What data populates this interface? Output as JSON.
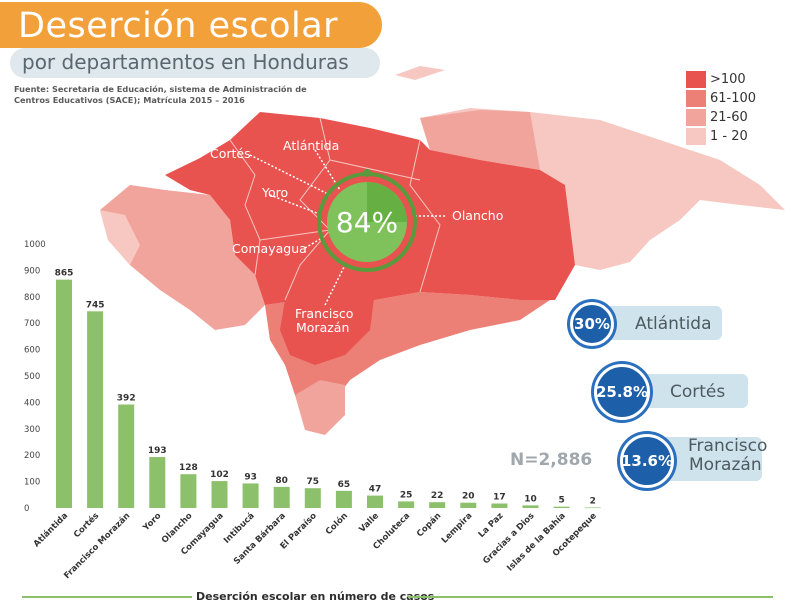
{
  "header": {
    "title": "Deserción escolar",
    "subtitle": "por departamentos en Honduras",
    "source_line1": "Fuente: Secretaria de Educación, sistema de Administración de",
    "source_line2": "Centros Educativos (SACE); Matrícula 2015 – 2016"
  },
  "legend": {
    "items": [
      {
        "label": ">100",
        "color": "#e8534f"
      },
      {
        "label": "61-100",
        "color": "#ec7f76"
      },
      {
        "label": "21-60",
        "color": "#f0a49b"
      },
      {
        "label": "1 - 20",
        "color": "#f6c8c1"
      }
    ]
  },
  "map": {
    "center_percent": "84%",
    "labels": [
      "Cortés",
      "Atlántida",
      "Yoro",
      "Olancho",
      "Comayagua",
      "Francisco",
      "Morazán"
    ]
  },
  "bubbles": [
    {
      "value": "30%",
      "label": "Atlántida",
      "fraction": 0.3
    },
    {
      "value": "25.8%",
      "label": "Cortés",
      "fraction": 0.258
    },
    {
      "value": "13.6%",
      "label_line1": "Francisco",
      "label_line2": "Morazán",
      "fraction": 0.136
    }
  ],
  "n_label": "N=2,886",
  "footer": "Deserción escolar en número de casos",
  "chart_data": {
    "type": "bar",
    "xlabel": "Deserción escolar en número de casos",
    "ylabel": "",
    "ylim": [
      0,
      1000
    ],
    "yticks": [
      0,
      100,
      200,
      300,
      400,
      500,
      600,
      700,
      800,
      900,
      1000
    ],
    "grid": false,
    "categories": [
      "Atlántida",
      "Cortés",
      "Francisco Morazán",
      "Yoro",
      "Olancho",
      "Comayagua",
      "Intibucá",
      "Santa Bárbara",
      "El Paraíso",
      "Colón",
      "Valle",
      "Choluteca",
      "Copán",
      "Lempira",
      "La Paz",
      "Gracias a Dios",
      "Islas de la Bahía",
      "Ocotepeque"
    ],
    "values": [
      865,
      745,
      392,
      193,
      128,
      102,
      93,
      80,
      75,
      65,
      47,
      25,
      22,
      20,
      17,
      10,
      5,
      2
    ],
    "bar_color": "#8cc06a"
  }
}
